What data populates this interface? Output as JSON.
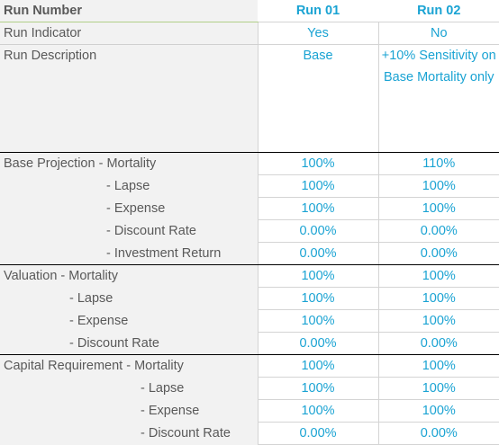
{
  "header": {
    "label": "Run Number",
    "runs": [
      "Run 01",
      "Run 02"
    ]
  },
  "indicator": {
    "label": "Run Indicator",
    "values": [
      "Yes",
      "No"
    ]
  },
  "description": {
    "label": "Run Description",
    "values": [
      "Base",
      "+10% Sensitivity on Base Mortality only"
    ]
  },
  "groups": [
    {
      "rows": [
        {
          "label": "Base Projection - Mortality",
          "values": [
            "100%",
            "110%"
          ]
        },
        {
          "label": "- Lapse",
          "values": [
            "100%",
            "100%"
          ]
        },
        {
          "label": "- Expense",
          "values": [
            "100%",
            "100%"
          ]
        },
        {
          "label": "- Discount Rate",
          "values": [
            "0.00%",
            "0.00%"
          ]
        },
        {
          "label": "- Investment Return",
          "values": [
            "0.00%",
            "0.00%"
          ]
        }
      ]
    },
    {
      "rows": [
        {
          "label": "Valuation - Mortality",
          "values": [
            "100%",
            "100%"
          ]
        },
        {
          "label": "- Lapse",
          "values": [
            "100%",
            "100%"
          ]
        },
        {
          "label": "- Expense",
          "values": [
            "100%",
            "100%"
          ]
        },
        {
          "label": "- Discount Rate",
          "values": [
            "0.00%",
            "0.00%"
          ]
        }
      ]
    },
    {
      "rows": [
        {
          "label": "Capital Requirement - Mortality",
          "values": [
            "100%",
            "100%"
          ]
        },
        {
          "label": "- Lapse",
          "values": [
            "100%",
            "100%"
          ]
        },
        {
          "label": "- Expense",
          "values": [
            "100%",
            "100%"
          ]
        },
        {
          "label": "- Discount Rate",
          "values": [
            "0.00%",
            "0.00%"
          ]
        }
      ]
    }
  ],
  "colors": {
    "header_bg": "#c4e09c",
    "label_bg": "#f2f2f2",
    "value_text": "#1aa3d3",
    "label_text": "#595959"
  }
}
